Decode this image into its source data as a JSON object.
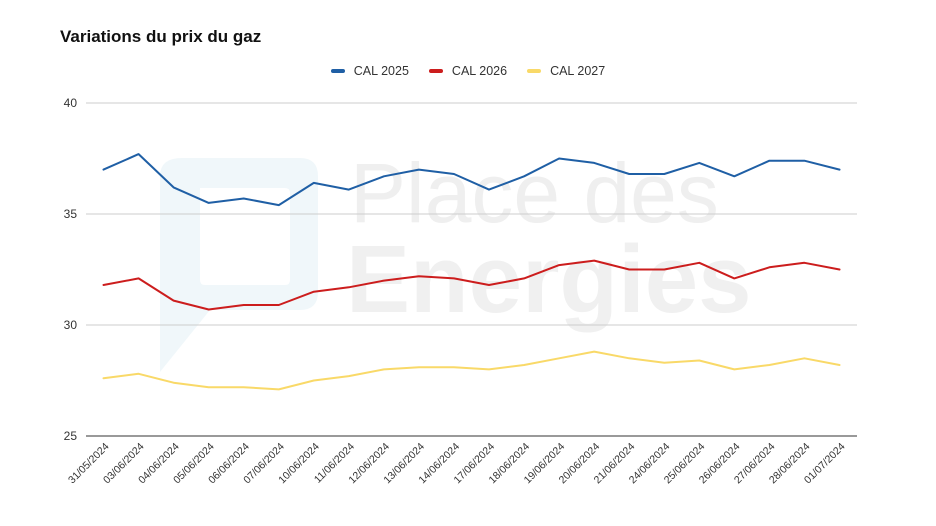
{
  "colors": {
    "accent": "#1f5fa5",
    "series": [
      "#1f5fa5",
      "#cc1d1d",
      "#f9d968"
    ]
  },
  "watermark": {
    "line1": "Place des",
    "line2": "Energies"
  },
  "chart_data": {
    "type": "line",
    "title": "Variations du prix du gaz",
    "xlabel": "",
    "ylabel": "",
    "ylim": [
      25,
      40
    ],
    "yticks": [
      "25",
      "30",
      "35",
      "40"
    ],
    "legend_position": "top-center",
    "grid": true,
    "categories": [
      "31/05/2024",
      "03/06/2024",
      "04/06/2024",
      "05/06/2024",
      "06/06/2024",
      "07/06/2024",
      "10/06/2024",
      "11/06/2024",
      "12/06/2024",
      "13/06/2024",
      "14/06/2024",
      "17/06/2024",
      "18/06/2024",
      "19/06/2024",
      "20/06/2024",
      "21/06/2024",
      "24/06/2024",
      "25/06/2024",
      "26/06/2024",
      "27/06/2024",
      "28/06/2024",
      "01/07/2024"
    ],
    "series": [
      {
        "name": "CAL 2025",
        "color": "#1f5fa5",
        "values": [
          37.0,
          37.7,
          36.2,
          35.5,
          35.7,
          35.4,
          36.4,
          36.1,
          36.7,
          37.0,
          36.8,
          36.1,
          36.7,
          37.5,
          37.3,
          36.8,
          36.8,
          37.3,
          36.7,
          37.4,
          37.4,
          37.0
        ]
      },
      {
        "name": "CAL 2026",
        "color": "#cc1d1d",
        "values": [
          31.8,
          32.1,
          31.1,
          30.7,
          30.9,
          30.9,
          31.5,
          31.7,
          32.0,
          32.2,
          32.1,
          31.8,
          32.1,
          32.7,
          32.9,
          32.5,
          32.5,
          32.8,
          32.1,
          32.6,
          32.8,
          32.5
        ]
      },
      {
        "name": "CAL 2027",
        "color": "#f9d968",
        "values": [
          27.6,
          27.8,
          27.4,
          27.2,
          27.2,
          27.1,
          27.5,
          27.7,
          28.0,
          28.1,
          28.1,
          28.0,
          28.2,
          28.5,
          28.8,
          28.5,
          28.3,
          28.4,
          28.0,
          28.2,
          28.5,
          28.2
        ]
      }
    ]
  }
}
